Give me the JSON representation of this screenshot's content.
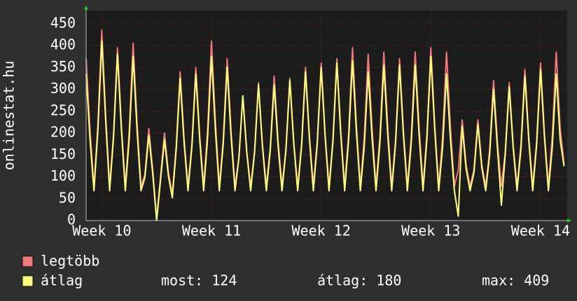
{
  "chart_data": {
    "type": "line",
    "ylabel": "onlinestat.hu",
    "x": [
      -1,
      -0.75,
      -0.5,
      -0.25,
      0,
      0.25,
      0.5,
      0.75,
      1,
      1.25,
      1.5,
      1.75,
      2,
      2.25,
      2.5,
      2.75,
      3,
      3.25,
      3.5,
      3.75,
      4,
      4.25,
      4.5,
      4.75,
      5,
      5.25,
      5.5,
      5.75,
      6,
      6.25,
      6.5,
      6.75,
      7,
      7.25,
      7.5,
      7.75,
      8,
      8.25,
      8.5,
      8.75,
      9,
      9.25,
      9.5,
      9.75,
      10,
      10.25,
      10.5,
      10.75,
      11,
      11.25,
      11.5,
      11.75,
      12,
      12.25,
      12.5,
      12.75,
      13,
      13.25,
      13.5,
      13.75,
      14,
      14.25,
      14.5,
      14.75,
      15,
      15.25,
      15.5,
      15.75,
      16,
      16.25,
      16.5,
      16.75,
      17,
      17.25,
      17.5,
      17.75,
      18,
      18.25,
      18.5,
      18.75,
      19,
      19.25,
      19.5,
      19.75,
      20,
      20.25,
      20.5,
      20.75,
      21,
      21.25,
      21.5,
      21.75,
      22,
      22.25,
      22.5,
      22.75,
      23,
      23.25,
      23.5,
      23.75,
      24,
      24.25,
      24.5,
      24.75,
      25,
      25.25,
      25.5,
      25.75,
      26,
      26.25,
      26.5,
      26.75,
      27,
      27.25,
      27.5,
      27.75,
      28,
      28.25,
      28.5,
      28.75,
      29,
      29.25,
      29.5
    ],
    "series": [
      {
        "name": "legtöbb",
        "color": "#f07878",
        "values": [
          370,
          204,
          78,
          218,
          435,
          239,
          78,
          198,
          395,
          217,
          78,
          203,
          405,
          223,
          78,
          105,
          210,
          116,
          5,
          100,
          200,
          110,
          60,
          170,
          340,
          187,
          78,
          175,
          350,
          193,
          78,
          205,
          410,
          226,
          78,
          185,
          370,
          204,
          78,
          143,
          285,
          157,
          78,
          158,
          315,
          173,
          78,
          165,
          330,
          182,
          78,
          163,
          325,
          179,
          78,
          175,
          350,
          193,
          78,
          180,
          360,
          198,
          78,
          185,
          370,
          204,
          78,
          198,
          395,
          217,
          78,
          190,
          380,
          209,
          78,
          193,
          385,
          212,
          78,
          185,
          370,
          204,
          78,
          193,
          385,
          212,
          78,
          198,
          395,
          217,
          78,
          193,
          385,
          212,
          78,
          115,
          230,
          127,
          78,
          115,
          230,
          127,
          78,
          160,
          320,
          176,
          78,
          158,
          315,
          173,
          78,
          173,
          345,
          190,
          78,
          180,
          360,
          198,
          78,
          193,
          385,
          212,
          130
        ]
      },
      {
        "name": "átlag",
        "color": "#ffff80",
        "values": [
          335,
          184,
          68,
          205,
          410,
          226,
          68,
          190,
          380,
          209,
          68,
          188,
          375,
          206,
          68,
          98,
          195,
          107,
          0,
          93,
          185,
          102,
          52,
          163,
          325,
          179,
          68,
          168,
          335,
          184,
          68,
          188,
          375,
          206,
          68,
          175,
          350,
          193,
          68,
          143,
          285,
          157,
          68,
          155,
          310,
          171,
          68,
          160,
          310,
          171,
          68,
          160,
          320,
          176,
          68,
          170,
          340,
          187,
          68,
          175,
          350,
          193,
          68,
          180,
          360,
          198,
          68,
          183,
          365,
          201,
          68,
          170,
          340,
          187,
          68,
          178,
          355,
          195,
          68,
          178,
          355,
          195,
          68,
          178,
          355,
          195,
          68,
          188,
          375,
          206,
          68,
          168,
          335,
          184,
          68,
          10,
          215,
          118,
          68,
          110,
          220,
          121,
          68,
          150,
          300,
          165,
          35,
          153,
          305,
          168,
          68,
          165,
          330,
          182,
          68,
          173,
          345,
          190,
          68,
          168,
          335,
          184,
          124
        ]
      }
    ],
    "xlim": [
      -1,
      29.7
    ],
    "xticks": [
      {
        "value": 0,
        "label": "Week 10"
      },
      {
        "value": 7,
        "label": "Week 11"
      },
      {
        "value": 14,
        "label": "Week 12"
      },
      {
        "value": 21,
        "label": "Week 13"
      },
      {
        "value": 28,
        "label": "Week 14"
      }
    ],
    "ylim": [
      0,
      480
    ],
    "yticks": [
      0,
      50,
      100,
      150,
      200,
      250,
      300,
      350,
      400,
      450
    ],
    "grid": true,
    "legend_stats": [
      "most: 124",
      "átlag: 180",
      "max: 409"
    ]
  }
}
